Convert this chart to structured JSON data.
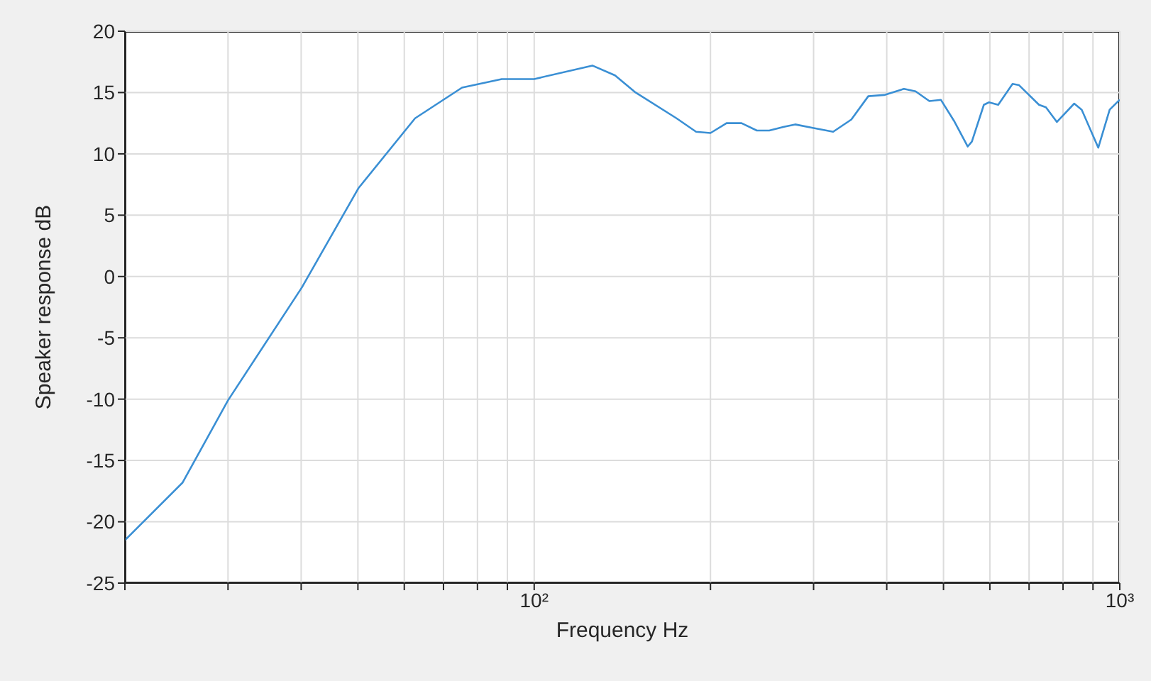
{
  "chart_data": {
    "type": "line",
    "xlabel": "Frequency Hz",
    "ylabel": "Speaker response dB",
    "log": "x",
    "grid": true,
    "marker": "none",
    "line_style": "solid",
    "xlim": [
      20,
      1000
    ],
    "ylim": [
      -25,
      20
    ],
    "xticks": [
      {
        "value": 20,
        "label": null
      },
      {
        "value": 30,
        "label": null
      },
      {
        "value": 40,
        "label": null
      },
      {
        "value": 50,
        "label": null
      },
      {
        "value": 60,
        "label": null
      },
      {
        "value": 70,
        "label": null
      },
      {
        "value": 80,
        "label": null
      },
      {
        "value": 90,
        "label": null
      },
      {
        "value": 100,
        "label": "10²"
      },
      {
        "value": 200,
        "label": null
      },
      {
        "value": 300,
        "label": null
      },
      {
        "value": 400,
        "label": null
      },
      {
        "value": 500,
        "label": null
      },
      {
        "value": 600,
        "label": null
      },
      {
        "value": 700,
        "label": null
      },
      {
        "value": 800,
        "label": null
      },
      {
        "value": 900,
        "label": null
      },
      {
        "value": 1000,
        "label": "10³"
      }
    ],
    "yticks": [
      -25,
      -20,
      -15,
      -10,
      -5,
      0,
      5,
      10,
      15,
      20
    ],
    "x": [
      20,
      25.1,
      30,
      40.1,
      50.1,
      62.6,
      75.3,
      88,
      100,
      125.7,
      137.4,
      149,
      175,
      189,
      200,
      213,
      226,
      240,
      252,
      267,
      279,
      300,
      324,
      348,
      372,
      396,
      428,
      448,
      473,
      495,
      521,
      550,
      559,
      586,
      598,
      620,
      656,
      673,
      728,
      748,
      781,
      836,
      861,
      919,
      961,
      994,
      1000
    ],
    "series": [
      {
        "color": "#3a8fd4",
        "values": [
          -21.5,
          -16.8,
          -10.1,
          -0.9,
          7.2,
          12.9,
          15.4,
          16.1,
          16.1,
          17.2,
          16.4,
          15.0,
          12.9,
          11.8,
          11.7,
          12.5,
          12.5,
          11.9,
          11.9,
          12.2,
          12.4,
          12.1,
          11.8,
          12.8,
          14.7,
          14.8,
          15.3,
          15.1,
          14.3,
          14.4,
          12.7,
          10.6,
          11.0,
          14.0,
          14.2,
          14.0,
          15.7,
          15.6,
          14.0,
          13.8,
          12.6,
          14.1,
          13.6,
          10.5,
          13.6,
          14.3,
          14.4
        ]
      }
    ]
  }
}
